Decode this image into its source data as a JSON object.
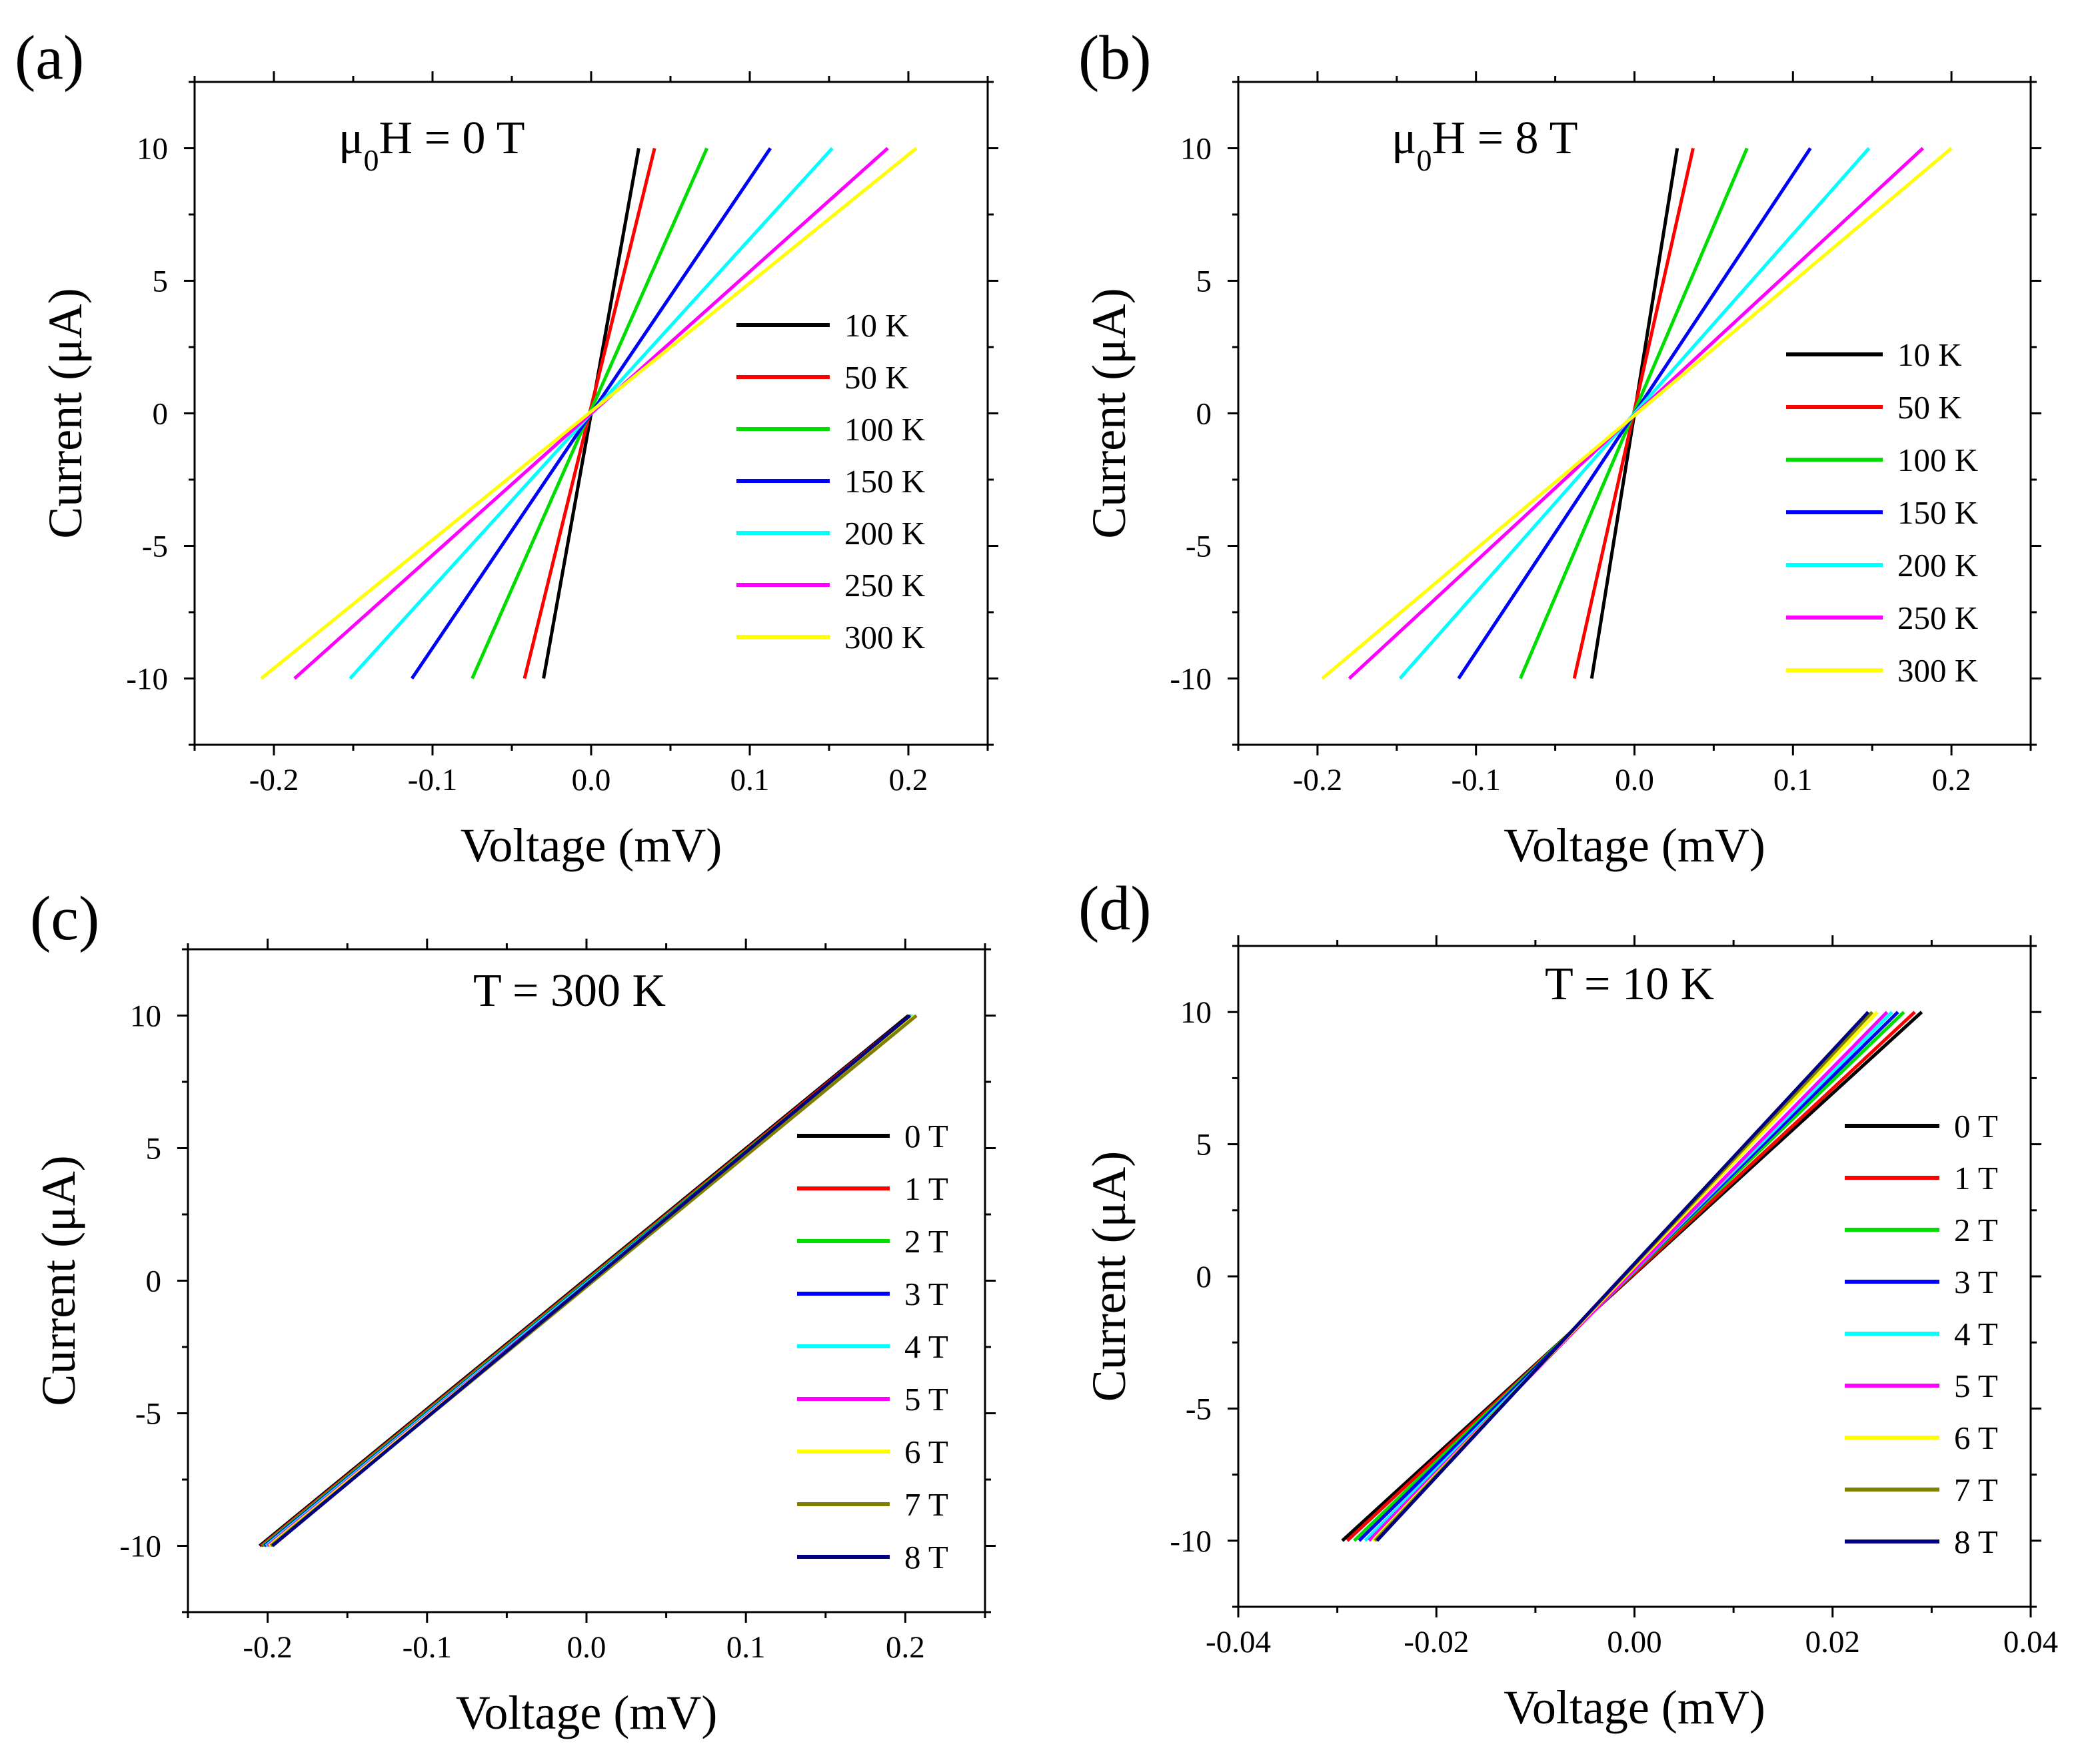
{
  "colors": {
    "black": "#000000",
    "red": "#ff0000",
    "green": "#00dd00",
    "blue": "#0000ff",
    "cyan": "#00ffff",
    "magenta": "#ff00ff",
    "yellow": "#ffff00",
    "olive": "#808000",
    "navy": "#000080"
  },
  "chart_data": [
    {
      "panel": "(a)",
      "type": "line",
      "annotation_main": "μ",
      "annotation_sub": "0",
      "annotation_rest": "H = 0 T",
      "xlabel": "Voltage  (mV)",
      "ylabel": "Current (μA)",
      "xlim": [
        -0.25,
        0.25
      ],
      "ylim": [
        -12.5,
        12.5
      ],
      "xticks": [
        -0.2,
        -0.1,
        0.0,
        0.1,
        0.2
      ],
      "xtick_labels": [
        "-0.2",
        "-0.1",
        "0.0",
        "0.1",
        "0.2"
      ],
      "yticks": [
        -10,
        -5,
        0,
        5,
        10
      ],
      "ytick_labels": [
        "-10",
        "-5",
        "0",
        "5",
        "10"
      ],
      "legend_position": "center-right",
      "series": [
        {
          "name": "10 K",
          "color": "#000000",
          "x": [
            -0.03,
            0.03
          ],
          "y": [
            -10,
            10
          ]
        },
        {
          "name": "50 K",
          "color": "#ff0000",
          "x": [
            -0.042,
            0.04
          ],
          "y": [
            -10,
            10
          ]
        },
        {
          "name": "100 K",
          "color": "#00dd00",
          "x": [
            -0.075,
            0.073
          ],
          "y": [
            -10,
            10
          ]
        },
        {
          "name": "150 K",
          "color": "#0000ff",
          "x": [
            -0.113,
            0.113
          ],
          "y": [
            -10,
            10
          ]
        },
        {
          "name": "200 K",
          "color": "#00ffff",
          "x": [
            -0.152,
            0.152
          ],
          "y": [
            -10,
            10
          ]
        },
        {
          "name": "250 K",
          "color": "#ff00ff",
          "x": [
            -0.187,
            0.187
          ],
          "y": [
            -10,
            10
          ]
        },
        {
          "name": "300 K",
          "color": "#ffff00",
          "x": [
            -0.208,
            0.205
          ],
          "y": [
            -10,
            10
          ]
        }
      ]
    },
    {
      "panel": "(b)",
      "type": "line",
      "annotation_main": "μ",
      "annotation_sub": "0",
      "annotation_rest": "H = 8 T",
      "xlabel": "Voltage  (mV)",
      "ylabel": "Current (μA)",
      "xlim": [
        -0.25,
        0.25
      ],
      "ylim": [
        -12.5,
        12.5
      ],
      "xticks": [
        -0.2,
        -0.1,
        0.0,
        0.1,
        0.2
      ],
      "xtick_labels": [
        "-0.2",
        "-0.1",
        "0.0",
        "0.1",
        "0.2"
      ],
      "yticks": [
        -10,
        -5,
        0,
        5,
        10
      ],
      "ytick_labels": [
        "-10",
        "-5",
        "0",
        "5",
        "10"
      ],
      "legend_position": "center-right",
      "series": [
        {
          "name": "10 K",
          "color": "#000000",
          "x": [
            -0.027,
            0.027
          ],
          "y": [
            -10,
            10
          ]
        },
        {
          "name": "50 K",
          "color": "#ff0000",
          "x": [
            -0.038,
            0.037
          ],
          "y": [
            -10,
            10
          ]
        },
        {
          "name": "100 K",
          "color": "#00dd00",
          "x": [
            -0.072,
            0.071
          ],
          "y": [
            -10,
            10
          ]
        },
        {
          "name": "150 K",
          "color": "#0000ff",
          "x": [
            -0.111,
            0.111
          ],
          "y": [
            -10,
            10
          ]
        },
        {
          "name": "200 K",
          "color": "#00ffff",
          "x": [
            -0.148,
            0.148
          ],
          "y": [
            -10,
            10
          ]
        },
        {
          "name": "250 K",
          "color": "#ff00ff",
          "x": [
            -0.18,
            0.182
          ],
          "y": [
            -10,
            10
          ]
        },
        {
          "name": "300 K",
          "color": "#ffff00",
          "x": [
            -0.197,
            0.2
          ],
          "y": [
            -10,
            10
          ]
        }
      ]
    },
    {
      "panel": "(c)",
      "type": "line",
      "annotation_main": "T = 300 K",
      "annotation_sub": "",
      "annotation_rest": "",
      "xlabel": "Voltage  (mV)",
      "ylabel": "Current (μA)",
      "xlim": [
        -0.25,
        0.25
      ],
      "ylim": [
        -12.5,
        12.5
      ],
      "xticks": [
        -0.2,
        -0.1,
        0.0,
        0.1,
        0.2
      ],
      "xtick_labels": [
        "-0.2",
        "-0.1",
        "0.0",
        "0.1",
        "0.2"
      ],
      "yticks": [
        -10,
        -5,
        0,
        5,
        10
      ],
      "ytick_labels": [
        "-10",
        "-5",
        "0",
        "5",
        "10"
      ],
      "legend_position": "center-right",
      "series": [
        {
          "name": "0 T",
          "color": "#000000",
          "x": [
            -0.205,
            0.202
          ],
          "y": [
            -10,
            10
          ]
        },
        {
          "name": "1 T",
          "color": "#ff0000",
          "x": [
            -0.204,
            0.203
          ],
          "y": [
            -10,
            10
          ]
        },
        {
          "name": "2 T",
          "color": "#00dd00",
          "x": [
            -0.203,
            0.204
          ],
          "y": [
            -10,
            10
          ]
        },
        {
          "name": "3 T",
          "color": "#0000ff",
          "x": [
            -0.202,
            0.205
          ],
          "y": [
            -10,
            10
          ]
        },
        {
          "name": "4 T",
          "color": "#00ffff",
          "x": [
            -0.201,
            0.205
          ],
          "y": [
            -10,
            10
          ]
        },
        {
          "name": "5 T",
          "color": "#ff00ff",
          "x": [
            -0.2,
            0.206
          ],
          "y": [
            -10,
            10
          ]
        },
        {
          "name": "6 T",
          "color": "#ffff00",
          "x": [
            -0.199,
            0.206
          ],
          "y": [
            -10,
            10
          ]
        },
        {
          "name": "7 T",
          "color": "#808000",
          "x": [
            -0.198,
            0.207
          ],
          "y": [
            -10,
            10
          ]
        },
        {
          "name": "8 T",
          "color": "#000080",
          "x": [
            -0.197,
            0.203
          ],
          "y": [
            -10,
            10
          ]
        }
      ]
    },
    {
      "panel": "(d)",
      "type": "line",
      "annotation_main": "T = 10 K",
      "annotation_sub": "",
      "annotation_rest": "",
      "xlabel": "Voltage  (mV)",
      "ylabel": "Current (μA)",
      "xlim": [
        -0.04,
        0.04
      ],
      "ylim": [
        -12.5,
        12.5
      ],
      "xticks": [
        -0.04,
        -0.02,
        0.0,
        0.02,
        0.04
      ],
      "xtick_labels": [
        "-0.04",
        "-0.02",
        "0.00",
        "0.02",
        "0.04"
      ],
      "yticks": [
        -10,
        -5,
        0,
        5,
        10
      ],
      "ytick_labels": [
        "-10",
        "-5",
        "0",
        "5",
        "10"
      ],
      "legend_position": "center-right",
      "series": [
        {
          "name": "0 T",
          "color": "#000000",
          "x": [
            -0.0295,
            0.029
          ],
          "y": [
            -10,
            10
          ]
        },
        {
          "name": "1 T",
          "color": "#ff0000",
          "x": [
            -0.029,
            0.0283
          ],
          "y": [
            -10,
            10
          ]
        },
        {
          "name": "2 T",
          "color": "#00dd00",
          "x": [
            -0.0283,
            0.0272
          ],
          "y": [
            -10,
            10
          ]
        },
        {
          "name": "3 T",
          "color": "#0000ff",
          "x": [
            -0.0278,
            0.0266
          ],
          "y": [
            -10,
            10
          ]
        },
        {
          "name": "4 T",
          "color": "#00ffff",
          "x": [
            -0.0272,
            0.026
          ],
          "y": [
            -10,
            10
          ]
        },
        {
          "name": "5 T",
          "color": "#ff00ff",
          "x": [
            -0.0268,
            0.0255
          ],
          "y": [
            -10,
            10
          ]
        },
        {
          "name": "6 T",
          "color": "#ffff00",
          "x": [
            -0.0264,
            0.0245
          ],
          "y": [
            -10,
            10
          ]
        },
        {
          "name": "7 T",
          "color": "#808000",
          "x": [
            -0.0262,
            0.024
          ],
          "y": [
            -10,
            10
          ]
        },
        {
          "name": "8 T",
          "color": "#000080",
          "x": [
            -0.026,
            0.0236
          ],
          "y": [
            -10,
            10
          ]
        }
      ]
    }
  ]
}
